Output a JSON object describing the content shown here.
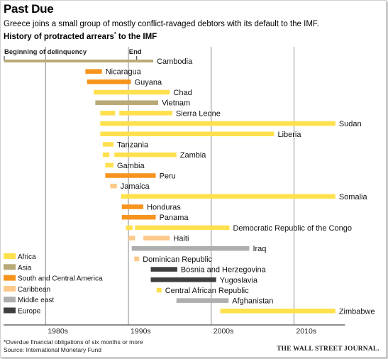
{
  "header": {
    "title": "Past Due",
    "subtitle": "Greece joins a small group of mostly conflict-ravaged debtors with its default to the IMF.",
    "chart_title": "History of protracted arrears",
    "chart_title_marker": "*",
    "chart_title_suffix": " to the IMF"
  },
  "footer": {
    "footnote": "*Overdue financial obligations of six months or more",
    "source": "Source: International Monetary Fund",
    "brand": "THE WALL STREET JOURNAL."
  },
  "colors": {
    "Africa": "#ffe04d",
    "Asia": "#b8aa78",
    "South and Central America": "#f7941d",
    "Caribbean": "#fcc98a",
    "Middle east": "#aeaeae",
    "Europe": "#3f3f3f",
    "gridline": "#8c8c8c",
    "axis": "#222222"
  },
  "chart_data": {
    "type": "timeline",
    "x_unit": "year",
    "xlim": [
      1975,
      2016
    ],
    "x_ticks": [
      1980,
      1990,
      2000,
      2010
    ],
    "x_tick_labels": [
      "1980s",
      "1990s",
      "2000s",
      "2010s"
    ],
    "grid": true,
    "legend_position": "bottom-left",
    "legend_example": {
      "start_label": "Beginning of delinquency",
      "end_label": "End",
      "range": [
        1975,
        1991
      ]
    },
    "categories": [
      "Africa",
      "Asia",
      "South and Central America",
      "Caribbean",
      "Middle east",
      "Europe"
    ],
    "rows": [
      {
        "label": "Cambodia",
        "region": "Asia",
        "periods": [
          [
            1975,
            1993
          ]
        ]
      },
      {
        "label": "Nicaragua",
        "region": "South and Central America",
        "periods": [
          [
            1984.8,
            1986.8
          ]
        ]
      },
      {
        "label": "Guyana",
        "region": "South and Central America",
        "periods": [
          [
            1985,
            1990.3
          ]
        ]
      },
      {
        "label": "Chad",
        "region": "Africa",
        "periods": [
          [
            1985.8,
            1995
          ]
        ]
      },
      {
        "label": "Vietnam",
        "region": "Asia",
        "periods": [
          [
            1986,
            1993.6
          ]
        ]
      },
      {
        "label": "Sierra Leone",
        "region": "Africa",
        "periods": [
          [
            1986.6,
            1988.4
          ],
          [
            1988.9,
            1995.3
          ]
        ]
      },
      {
        "label": "Sudan",
        "region": "Africa",
        "periods": [
          [
            1986.6,
            2015
          ]
        ]
      },
      {
        "label": "Liberia",
        "region": "Africa",
        "periods": [
          [
            1986.6,
            2007.6
          ]
        ]
      },
      {
        "label": "Tanzania",
        "region": "Africa",
        "periods": [
          [
            1986.9,
            1988.2
          ]
        ]
      },
      {
        "label": "Zambia",
        "region": "Africa",
        "periods": [
          [
            1986.9,
            1987.7
          ],
          [
            1988.3,
            1995.8
          ]
        ]
      },
      {
        "label": "Gambia",
        "region": "Africa",
        "periods": [
          [
            1987.2,
            1988.2
          ]
        ]
      },
      {
        "label": "Peru",
        "region": "South and Central America",
        "periods": [
          [
            1987.2,
            1993.3
          ]
        ]
      },
      {
        "label": "Jamaica",
        "region": "Caribbean",
        "periods": [
          [
            1987.8,
            1988.6
          ]
        ]
      },
      {
        "label": "Somalia",
        "region": "Africa",
        "periods": [
          [
            1989.1,
            2015
          ]
        ]
      },
      {
        "label": "Honduras",
        "region": "South and Central America",
        "periods": [
          [
            1989.2,
            1991.8
          ]
        ]
      },
      {
        "label": "Panama",
        "region": "South and Central America",
        "periods": [
          [
            1989.2,
            1993.3
          ]
        ]
      },
      {
        "label": "Democratic Republic of the Congo",
        "region": "Africa",
        "periods": [
          [
            1989.7,
            1990.5
          ],
          [
            1990.8,
            2002.2
          ]
        ]
      },
      {
        "label": "Haiti",
        "region": "Caribbean",
        "periods": [
          [
            1990,
            1990.8
          ],
          [
            1991.8,
            1995
          ]
        ]
      },
      {
        "label": "Iraq",
        "region": "Middle east",
        "periods": [
          [
            1990.4,
            2004.6
          ]
        ]
      },
      {
        "label": "Dominican Republic",
        "region": "Caribbean",
        "periods": [
          [
            1990.7,
            1991.3
          ]
        ]
      },
      {
        "label": "Bosnia and Herzegovina",
        "region": "Europe",
        "periods": [
          [
            1992.7,
            1995.9
          ]
        ]
      },
      {
        "label": "Yugoslavia",
        "region": "Europe",
        "periods": [
          [
            1992.7,
            2000.6
          ]
        ]
      },
      {
        "label": "Central African Republic",
        "region": "Africa",
        "periods": [
          [
            1993.4,
            1994
          ]
        ]
      },
      {
        "label": "Afghanistan",
        "region": "Middle east",
        "periods": [
          [
            1995.8,
            2002.1
          ]
        ]
      },
      {
        "label": "Zimbabwe",
        "region": "Africa",
        "periods": [
          [
            2001.1,
            2015
          ]
        ]
      }
    ]
  }
}
